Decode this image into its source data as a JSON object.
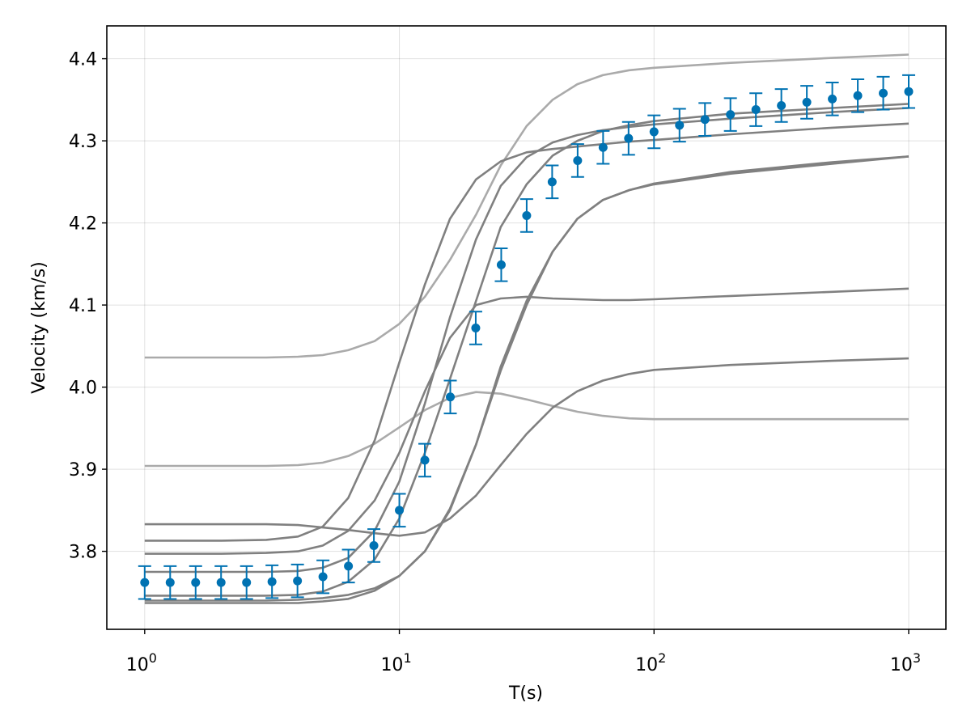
{
  "chart_data": {
    "type": "line",
    "title": "",
    "xlabel": "T(s)",
    "ylabel": "Velocity (km/s)",
    "xscale": "log10",
    "xlim": [
      0.71,
      1400
    ],
    "ylim": [
      3.705,
      4.44
    ],
    "x_ticks": [
      {
        "value": 1,
        "base": "10",
        "exp": "0"
      },
      {
        "value": 10,
        "base": "10",
        "exp": "1"
      },
      {
        "value": 100,
        "base": "10",
        "exp": "2"
      },
      {
        "value": 1000,
        "base": "10",
        "exp": "3"
      }
    ],
    "y_ticks": [
      {
        "value": 3.8,
        "label": "3.8"
      },
      {
        "value": 3.9,
        "label": "3.9"
      },
      {
        "value": 4.0,
        "label": "4.0"
      },
      {
        "value": 4.1,
        "label": "4.1"
      },
      {
        "value": 4.2,
        "label": "4.2"
      },
      {
        "value": 4.3,
        "label": "4.3"
      },
      {
        "value": 4.4,
        "label": "4.4"
      }
    ],
    "grid": true,
    "colors": {
      "observed": "#0072b2",
      "model_dark": "#808080",
      "model_light": "#aaaaaa"
    },
    "model_curves": [
      {
        "shade": "light",
        "x": [
          1,
          2,
          3,
          4,
          5,
          6.3,
          8,
          10,
          12.6,
          15.8,
          20,
          25,
          31.6,
          40,
          50,
          63,
          80,
          100,
          200,
          500,
          1000
        ],
        "y": [
          4.036,
          4.036,
          4.036,
          4.037,
          4.039,
          4.045,
          4.056,
          4.077,
          4.11,
          4.155,
          4.21,
          4.27,
          4.318,
          4.35,
          4.369,
          4.38,
          4.386,
          4.389,
          4.395,
          4.401,
          4.405
        ]
      },
      {
        "shade": "light",
        "x": [
          1,
          2,
          3,
          4,
          5,
          6.3,
          8,
          10,
          12.6,
          15.8,
          20,
          25,
          31.6,
          40,
          50,
          63,
          80,
          100,
          200,
          500,
          1000
        ],
        "y": [
          3.904,
          3.904,
          3.904,
          3.905,
          3.908,
          3.916,
          3.931,
          3.951,
          3.972,
          3.987,
          3.994,
          3.992,
          3.985,
          3.977,
          3.97,
          3.965,
          3.962,
          3.961,
          3.961,
          3.961,
          3.961
        ]
      },
      {
        "shade": "dark",
        "x": [
          1,
          2,
          3,
          4,
          5,
          6.3,
          8,
          10,
          12.6,
          15.8,
          20,
          25,
          31.6,
          40,
          50,
          63,
          80,
          100,
          200,
          500,
          1000
        ],
        "y": [
          3.813,
          3.813,
          3.814,
          3.818,
          3.83,
          3.865,
          3.935,
          4.03,
          4.125,
          4.205,
          4.253,
          4.275,
          4.286,
          4.29,
          4.293,
          4.296,
          4.299,
          4.301,
          4.308,
          4.316,
          4.321
        ]
      },
      {
        "shade": "dark",
        "x": [
          1,
          2,
          3,
          4,
          5,
          6.3,
          8,
          10,
          12.6,
          15.8,
          20,
          25,
          31.6,
          40,
          50,
          63,
          80,
          100,
          200,
          500,
          1000
        ],
        "y": [
          3.797,
          3.797,
          3.798,
          3.8,
          3.807,
          3.825,
          3.862,
          3.92,
          3.995,
          4.06,
          4.1,
          4.108,
          4.11,
          4.108,
          4.107,
          4.106,
          4.106,
          4.107,
          4.111,
          4.116,
          4.12
        ]
      },
      {
        "shade": "dark",
        "x": [
          1,
          2,
          3,
          4,
          5,
          6.3,
          8,
          10,
          12.6,
          15.8,
          20,
          25,
          31.6,
          40,
          50,
          63,
          80,
          100,
          200,
          500,
          1000
        ],
        "y": [
          3.775,
          3.775,
          3.775,
          3.776,
          3.78,
          3.792,
          3.825,
          3.885,
          3.98,
          4.085,
          4.18,
          4.245,
          4.28,
          4.298,
          4.307,
          4.313,
          4.317,
          4.32,
          4.327,
          4.335,
          4.34
        ]
      },
      {
        "shade": "dark",
        "x": [
          1,
          2,
          3,
          4,
          5,
          6.3,
          8,
          10,
          12.6,
          15.8,
          20,
          25,
          31.6,
          40,
          50,
          63,
          80,
          100,
          200,
          500,
          1000
        ],
        "y": [
          3.746,
          3.746,
          3.746,
          3.747,
          3.751,
          3.763,
          3.79,
          3.84,
          3.92,
          4.01,
          4.105,
          4.195,
          4.247,
          4.282,
          4.3,
          4.312,
          4.319,
          4.324,
          4.333,
          4.34,
          4.345
        ]
      },
      {
        "shade": "dark",
        "x": [
          1,
          2,
          3,
          4,
          5,
          6.3,
          8,
          10,
          12.6,
          15.8,
          20,
          25,
          31.6,
          40,
          50,
          63,
          80,
          100,
          200,
          500,
          1000
        ],
        "y": [
          3.74,
          3.74,
          3.74,
          3.741,
          3.743,
          3.747,
          3.755,
          3.77,
          3.8,
          3.85,
          3.93,
          4.02,
          4.1,
          4.165,
          4.205,
          4.228,
          4.24,
          4.247,
          4.26,
          4.272,
          4.281
        ]
      },
      {
        "shade": "dark",
        "x": [
          1,
          2,
          3,
          4,
          5,
          6.3,
          8,
          10,
          12.6,
          15.8,
          20,
          25,
          31.6,
          40,
          50,
          63,
          80,
          100,
          200,
          500,
          1000
        ],
        "y": [
          3.833,
          3.833,
          3.833,
          3.832,
          3.829,
          3.826,
          3.822,
          3.819,
          3.823,
          3.84,
          3.868,
          3.905,
          3.943,
          3.975,
          3.995,
          4.008,
          4.016,
          4.021,
          4.027,
          4.032,
          4.035
        ]
      },
      {
        "shade": "dark",
        "x": [
          1,
          2,
          3,
          4,
          5,
          6.3,
          8,
          10,
          12.6,
          15.8,
          20,
          25,
          31.6,
          40,
          50,
          63,
          80,
          100,
          200,
          500,
          1000
        ],
        "y": [
          3.737,
          3.737,
          3.737,
          3.737,
          3.739,
          3.742,
          3.752,
          3.77,
          3.8,
          3.852,
          3.93,
          4.025,
          4.105,
          4.165,
          4.205,
          4.228,
          4.24,
          4.248,
          4.262,
          4.274,
          4.281
        ]
      }
    ],
    "observed": {
      "x": [
        1.0,
        1.259,
        1.585,
        1.995,
        2.512,
        3.162,
        3.981,
        5.012,
        6.31,
        7.943,
        10.0,
        12.59,
        15.85,
        19.95,
        25.12,
        31.62,
        39.81,
        50.12,
        63.1,
        79.43,
        100.0,
        125.9,
        158.5,
        199.5,
        251.2,
        316.2,
        398.1,
        501.2,
        631.0,
        794.3,
        1000.0
      ],
      "y": [
        3.762,
        3.762,
        3.762,
        3.762,
        3.762,
        3.763,
        3.764,
        3.769,
        3.782,
        3.807,
        3.85,
        3.911,
        3.988,
        4.072,
        4.149,
        4.209,
        4.25,
        4.276,
        4.292,
        4.303,
        4.311,
        4.319,
        4.326,
        4.332,
        4.338,
        4.343,
        4.347,
        4.351,
        4.355,
        4.358,
        4.36
      ],
      "error": 0.02
    }
  }
}
